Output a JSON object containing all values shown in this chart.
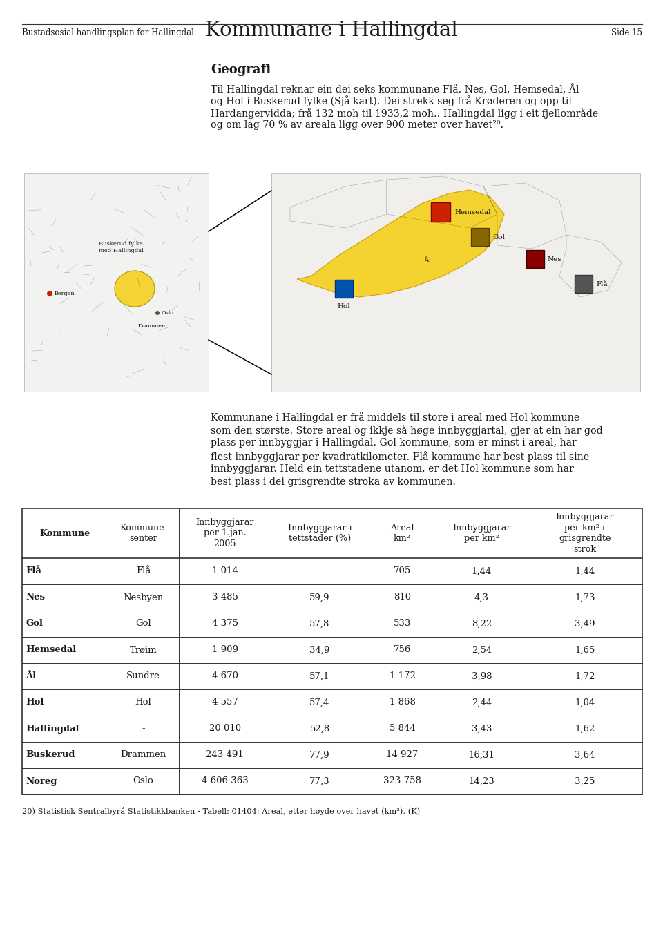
{
  "page_title": "Kommunane i Hallingdal",
  "section_title": "Geografi",
  "body_text_lines": [
    "Til Hallingdal reknar ein dei seks kommunane Flå, Nes, Gol, Hemsedal, Ål",
    "og Hol i Buskerud fylke (Sjå kart). Dei strekk seg frå Krøderen og opp til",
    "Hardangervidda; frå 132 moh til 1933,2 moh.. Hallingdal ligg i eit fjellområde",
    "og om lag 70 % av areala ligg over 900 meter over havet²⁰."
  ],
  "desc_text_lines": [
    "Kommunane i Hallingdal er frå middels til store i areal med Hol kommune",
    "som den største. Store areal og ikkje så høge innbyggjartal, gjer at ein har god",
    "plass per innbyggjar i Hallingdal. Gol kommune, som er minst i areal, har",
    "flest innbyggjarar per kvadratkilometer. Flå kommune har best plass til sine",
    "innbyggjarar. Held ein tettstadene utanom, er det Hol kommune som har",
    "best plass i dei grisgrendte stroka av kommunen."
  ],
  "table_headers": [
    "Kommune",
    "Kommune-\nsenter",
    "Innbyggjarar\nper 1.jan.\n2005",
    "Innbyggjarar i\ntettstader (%)",
    "Areal\nkm²",
    "Innbyggjarar\nper km²",
    "Innbyggjarar\nper km² i\ngrisgrendte\nstrok"
  ],
  "table_data": [
    [
      "Flå",
      "Flå",
      "1 014",
      "-",
      "705",
      "1,44",
      "1,44"
    ],
    [
      "Nes",
      "Nesbyen",
      "3 485",
      "59,9",
      "810",
      "4,3",
      "1,73"
    ],
    [
      "Gol",
      "Gol",
      "4 375",
      "57,8",
      "533",
      "8,22",
      "3,49"
    ],
    [
      "Hemsedal",
      "Trøim",
      "1 909",
      "34,9",
      "756",
      "2,54",
      "1,65"
    ],
    [
      "Ål",
      "Sundre",
      "4 670",
      "57,1",
      "1 172",
      "3,98",
      "1,72"
    ],
    [
      "Hol",
      "Hol",
      "4 557",
      "57,4",
      "1 868",
      "2,44",
      "1,04"
    ],
    [
      "Hallingdal",
      "-",
      "20 010",
      "52,8",
      "5 844",
      "3,43",
      "1,62"
    ],
    [
      "Buskerud",
      "Drammen",
      "243 491",
      "77,9",
      "14 927",
      "16,31",
      "3,64"
    ],
    [
      "Noreg",
      "Oslo",
      "4 606 363",
      "77,3",
      "323 758",
      "14,23",
      "3,25"
    ]
  ],
  "footnote": "20) Statistisk Sentralbyrå Statistikkbanken - Tabell: 01404: Areal, etter høyde over havet (km²). (K)",
  "footer_left": "Bustadsosial handlingsplan for Hallingdal",
  "footer_right": "Side 15",
  "bg_color": "#ffffff",
  "text_color": "#1a1a1a",
  "col_props": [
    0.138,
    0.115,
    0.148,
    0.158,
    0.108,
    0.148,
    0.185
  ]
}
